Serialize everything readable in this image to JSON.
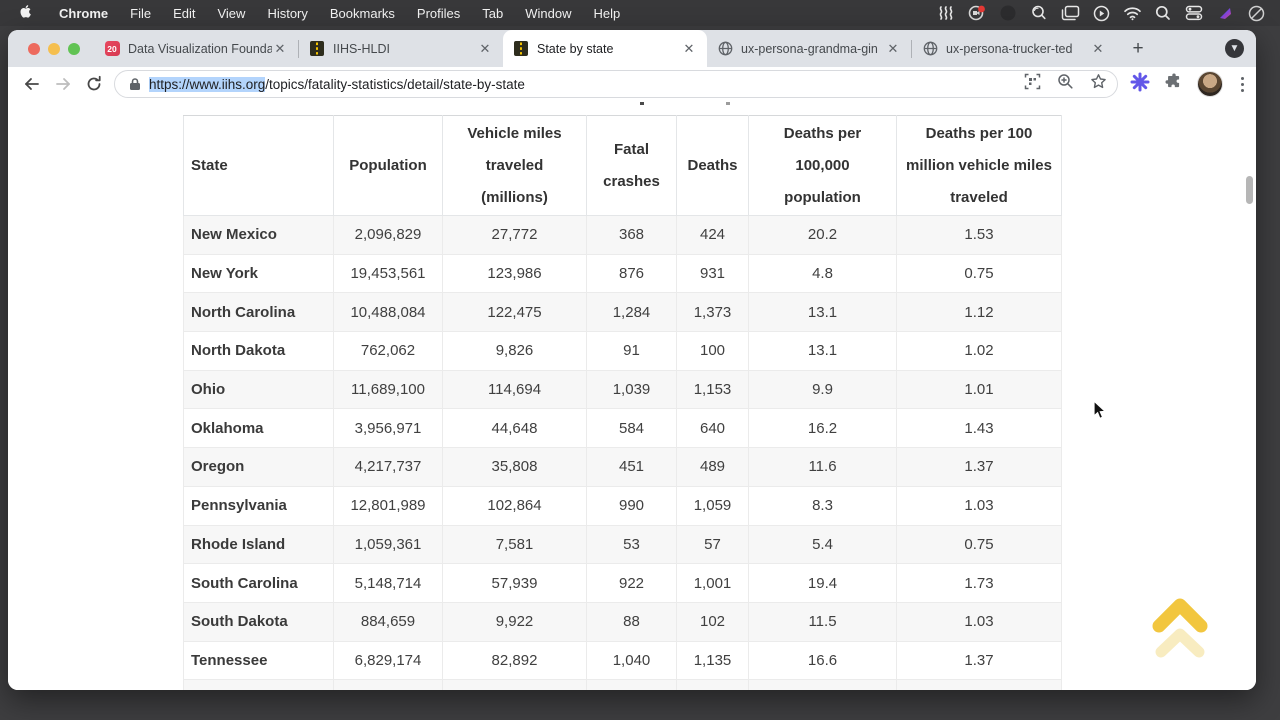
{
  "menubar": {
    "apple_logo": "apple-icon",
    "items": [
      "Chrome",
      "File",
      "Edit",
      "View",
      "History",
      "Bookmarks",
      "Profiles",
      "Tab",
      "Window",
      "Help"
    ],
    "status_icons": [
      "waves-icon",
      "meet-camera-icon",
      "dim-circle-icon",
      "zoom-lens-icon",
      "mission-control-icon",
      "play-circle-icon",
      "wifi-icon",
      "spotlight-search-icon",
      "control-center-icon",
      "colorful-app-icon",
      "do-not-disturb-icon"
    ]
  },
  "tabstrip": {
    "tabs": [
      {
        "label": "Data Visualization Founda",
        "favicon": "calendar-badge",
        "badge": "20",
        "active": false
      },
      {
        "label": "IIHS-HLDI",
        "favicon": "road",
        "active": false
      },
      {
        "label": "State by state",
        "favicon": "road",
        "active": true
      },
      {
        "label": "ux-persona-grandma-gin",
        "favicon": "globe",
        "active": false
      },
      {
        "label": "ux-persona-trucker-ted",
        "favicon": "globe",
        "active": false
      }
    ],
    "close_glyph": "✕",
    "new_tab_glyph": "+"
  },
  "toolbar": {
    "url_selected": "https://www.iihs.org",
    "url_rest": "/topics/fatality-statistics/detail/state-by-state",
    "icons": [
      "back-icon",
      "forward-icon",
      "reload-icon",
      "lock-icon",
      "screenshot-icon",
      "zoom-in-icon",
      "bookmark-star-icon",
      "extension-asterisk-icon",
      "puzzle-extensions-icon",
      "profile-avatar",
      "more-menu-icon"
    ]
  },
  "table": {
    "headers": [
      "State",
      "Population",
      "Vehicle miles traveled (millions)",
      "Fatal crashes",
      "Deaths",
      "Deaths per 100,000 population",
      "Deaths per 100 million vehicle miles traveled"
    ],
    "rows": [
      {
        "state": "New Mexico",
        "values": [
          "2,096,829",
          "27,772",
          "368",
          "424",
          "20.2",
          "1.53"
        ]
      },
      {
        "state": "New York",
        "values": [
          "19,453,561",
          "123,986",
          "876",
          "931",
          "4.8",
          "0.75"
        ]
      },
      {
        "state": "North Carolina",
        "values": [
          "10,488,084",
          "122,475",
          "1,284",
          "1,373",
          "13.1",
          "1.12"
        ]
      },
      {
        "state": "North Dakota",
        "values": [
          "762,062",
          "9,826",
          "91",
          "100",
          "13.1",
          "1.02"
        ]
      },
      {
        "state": "Ohio",
        "values": [
          "11,689,100",
          "114,694",
          "1,039",
          "1,153",
          "9.9",
          "1.01"
        ]
      },
      {
        "state": "Oklahoma",
        "values": [
          "3,956,971",
          "44,648",
          "584",
          "640",
          "16.2",
          "1.43"
        ]
      },
      {
        "state": "Oregon",
        "values": [
          "4,217,737",
          "35,808",
          "451",
          "489",
          "11.6",
          "1.37"
        ]
      },
      {
        "state": "Pennsylvania",
        "values": [
          "12,801,989",
          "102,864",
          "990",
          "1,059",
          "8.3",
          "1.03"
        ]
      },
      {
        "state": "Rhode Island",
        "values": [
          "1,059,361",
          "7,581",
          "53",
          "57",
          "5.4",
          "0.75"
        ]
      },
      {
        "state": "South Carolina",
        "values": [
          "5,148,714",
          "57,939",
          "922",
          "1,001",
          "19.4",
          "1.73"
        ]
      },
      {
        "state": "South Dakota",
        "values": [
          "884,659",
          "9,922",
          "88",
          "102",
          "11.5",
          "1.03"
        ]
      },
      {
        "state": "Tennessee",
        "values": [
          "6,829,174",
          "82,892",
          "1,040",
          "1,135",
          "16.6",
          "1.37"
        ]
      }
    ]
  },
  "widgets": {
    "scroll_top_icon": "scroll-to-top-chevrons",
    "accent_gold": "#f2c63f",
    "selection_blue": "#b3d4fc",
    "tabstrip_gray": "#dee1e6",
    "menubar_dark": "#38383a"
  }
}
